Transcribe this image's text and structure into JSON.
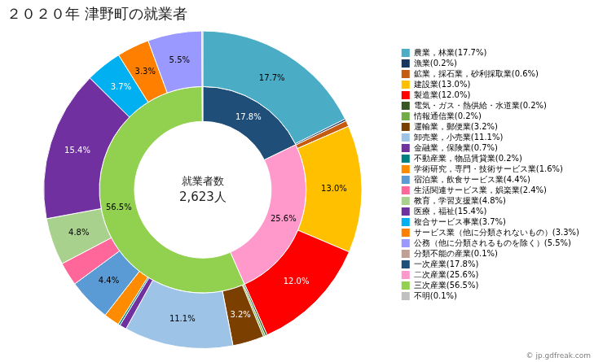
{
  "chart_data": {
    "type": "doughnut",
    "title": "２０２０年 津野町の就業者",
    "annotations": [
      "就業者数",
      "2,623人",
      "© jp.gdfreak.com"
    ],
    "legend": "right",
    "data_labels": true,
    "series": [
      {
        "categories": [
          "農業，林業(17.7%)",
          "漁業(0.2%)",
          "鉱業，採石業，砂利採取業(0.6%)",
          "建設業(13.0%)",
          "製造業(12.0%)",
          "電気・ガス・熱供給・水道業(0.2%)",
          "情報通信業(0.2%)",
          "運輸業，郵便業(3.2%)",
          "卸売業，小売業(11.1%)",
          "金融業，保険業(0.7%)",
          "不動産業，物品賃貸業(0.2%)",
          "学術研究，専門・技術サービス業(1.6%)",
          "宿泊業，飲食サービス業(4.4%)",
          "生活関連サービス業，娯楽業(2.4%)",
          "教育，学習支援業(4.8%)",
          "医療，福祉(15.4%)",
          "複合サービス事業(3.7%)",
          "サービス業（他に分類されないもの）(3.3%)",
          "公務（他に分類されるものを除く）(5.5%)",
          "分類不能の産業(0.1%)"
        ],
        "values": [
          17.7,
          0.2,
          0.6,
          13.0,
          12.0,
          0.2,
          0.2,
          3.2,
          11.1,
          0.7,
          0.2,
          1.6,
          4.4,
          2.4,
          4.8,
          15.4,
          3.7,
          3.3,
          5.5,
          0.1
        ],
        "colors": [
          "#4bacc6",
          "#17375e",
          "#c55a11",
          "#ffc000",
          "#ff0000",
          "#375623",
          "#70ad47",
          "#7b3f00",
          "#9dc3e6",
          "#7030a0",
          "#008080",
          "#ff8c00",
          "#5b9bd5",
          "#ff6699",
          "#a9d18e",
          "#7030a0",
          "#00b0f0",
          "#ff8000",
          "#9999ff",
          "#c0a090"
        ],
        "value_labels": [
          "17.7%",
          null,
          null,
          "13.0%",
          "12.0%",
          null,
          null,
          "3.2%",
          "11.1%",
          null,
          null,
          null,
          "4.4%",
          null,
          "4.8%",
          "15.4%",
          "3.7%",
          "3.3%",
          "5.5%",
          null
        ]
      },
      {
        "categories": [
          "一次産業(17.8%)",
          "二次産業(25.6%)",
          "三次産業(56.5%)",
          "不明(0.1%)"
        ],
        "values": [
          17.8,
          25.6,
          56.5,
          0.1
        ],
        "colors": [
          "#1f4e79",
          "#ff99cc",
          "#92d050",
          "#c0c0c0"
        ],
        "value_labels": [
          "17.8%",
          "25.6%",
          "56.5%",
          null
        ]
      }
    ]
  }
}
